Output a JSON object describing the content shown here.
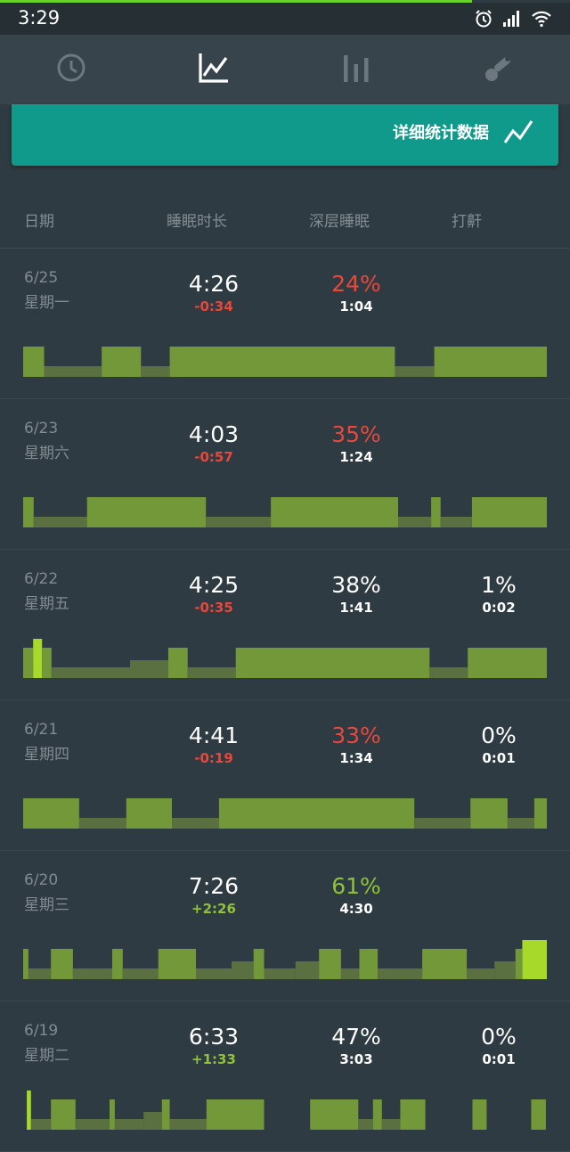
{
  "status_bar": {
    "time": "3:29",
    "icons": [
      "alarm-icon",
      "signal-icon",
      "wifi-icon"
    ]
  },
  "tabs": [
    {
      "name": "clock-tab",
      "icon": "clock-icon",
      "active": false
    },
    {
      "name": "graph-tab",
      "icon": "line-graph-icon",
      "active": true
    },
    {
      "name": "bars-tab",
      "icon": "bar-chart-icon",
      "active": false
    },
    {
      "name": "tools-tab",
      "icon": "tools-icon",
      "active": false
    }
  ],
  "detail_card": {
    "label": "详细统计数据",
    "icon": "trend-icon"
  },
  "headers": {
    "date": "日期",
    "duration": "睡眠时长",
    "deep": "深层睡眠",
    "snore": "打鼾"
  },
  "colors": {
    "background": "#2f3b42",
    "accent": "#0f9a8c",
    "deficit": "#e9473c",
    "surplus": "#8fc23a",
    "light": "#73983a",
    "deep": "#5b7040",
    "highlight": "#a6d92a"
  },
  "days": [
    {
      "date": "6/25",
      "weekday": "星期一",
      "duration": "4:26",
      "duration_diff": "-0:34",
      "diff_color": "red",
      "deep_pct": "24%",
      "deep_pct_color": "red",
      "deep_time": "1:04",
      "snore_pct": "",
      "snore_time": "",
      "segments": [
        {
          "stage": "light",
          "start": 0,
          "end": 0.04
        },
        {
          "stage": "deep",
          "start": 0.04,
          "end": 0.15
        },
        {
          "stage": "light",
          "start": 0.15,
          "end": 0.225
        },
        {
          "stage": "deep",
          "start": 0.225,
          "end": 0.28
        },
        {
          "stage": "light",
          "start": 0.28,
          "end": 0.71
        },
        {
          "stage": "deep",
          "start": 0.71,
          "end": 0.785
        },
        {
          "stage": "light",
          "start": 0.785,
          "end": 1
        }
      ]
    },
    {
      "date": "6/23",
      "weekday": "星期六",
      "duration": "4:03",
      "duration_diff": "-0:57",
      "diff_color": "red",
      "deep_pct": "35%",
      "deep_pct_color": "red",
      "deep_time": "1:24",
      "snore_pct": "",
      "snore_time": "",
      "segments": [
        {
          "stage": "light",
          "start": 0,
          "end": 0.02
        },
        {
          "stage": "deep",
          "start": 0.02,
          "end": 0.122
        },
        {
          "stage": "light",
          "start": 0.122,
          "end": 0.349
        },
        {
          "stage": "deep",
          "start": 0.349,
          "end": 0.473
        },
        {
          "stage": "light",
          "start": 0.473,
          "end": 0.716
        },
        {
          "stage": "deep",
          "start": 0.716,
          "end": 0.779
        },
        {
          "stage": "light",
          "start": 0.779,
          "end": 0.797
        },
        {
          "stage": "deep",
          "start": 0.797,
          "end": 0.857
        },
        {
          "stage": "light",
          "start": 0.857,
          "end": 1
        }
      ]
    },
    {
      "date": "6/22",
      "weekday": "星期五",
      "duration": "4:25",
      "duration_diff": "-0:35",
      "diff_color": "red",
      "deep_pct": "38%",
      "deep_pct_color": "white",
      "deep_time": "1:41",
      "snore_pct": "1%",
      "snore_time": "0:02",
      "segments": [
        {
          "stage": "light",
          "start": 0,
          "end": 0.019
        },
        {
          "stage": "highlight",
          "start": 0.019,
          "end": 0.036
        },
        {
          "stage": "light",
          "start": 0.036,
          "end": 0.054
        },
        {
          "stage": "deep",
          "start": 0.054,
          "end": 0.204
        },
        {
          "stage": "deep2",
          "start": 0.204,
          "end": 0.277
        },
        {
          "stage": "light",
          "start": 0.277,
          "end": 0.314
        },
        {
          "stage": "deep",
          "start": 0.314,
          "end": 0.406
        },
        {
          "stage": "light",
          "start": 0.406,
          "end": 0.776
        },
        {
          "stage": "deep",
          "start": 0.776,
          "end": 0.849
        },
        {
          "stage": "light",
          "start": 0.849,
          "end": 1
        }
      ]
    },
    {
      "date": "6/21",
      "weekday": "星期四",
      "duration": "4:41",
      "duration_diff": "-0:19",
      "diff_color": "red",
      "deep_pct": "33%",
      "deep_pct_color": "red",
      "deep_time": "1:34",
      "snore_pct": "0%",
      "snore_time": "0:01",
      "segments": [
        {
          "stage": "light",
          "start": 0,
          "end": 0.107
        },
        {
          "stage": "deep",
          "start": 0.107,
          "end": 0.197
        },
        {
          "stage": "light",
          "start": 0.197,
          "end": 0.284
        },
        {
          "stage": "deep",
          "start": 0.284,
          "end": 0.374
        },
        {
          "stage": "light",
          "start": 0.374,
          "end": 0.747
        },
        {
          "stage": "deep",
          "start": 0.747,
          "end": 0.854
        },
        {
          "stage": "light",
          "start": 0.854,
          "end": 0.925
        },
        {
          "stage": "deep",
          "start": 0.925,
          "end": 0.976
        },
        {
          "stage": "light",
          "start": 0.976,
          "end": 1
        }
      ]
    },
    {
      "date": "6/20",
      "weekday": "星期三",
      "duration": "7:26",
      "duration_diff": "+2:26",
      "diff_color": "green",
      "deep_pct": "61%",
      "deep_pct_color": "green",
      "deep_time": "4:30",
      "snore_pct": "",
      "snore_time": "",
      "segments": [
        {
          "stage": "light",
          "start": 0,
          "end": 0.01
        },
        {
          "stage": "deep",
          "start": 0.01,
          "end": 0.053
        },
        {
          "stage": "light",
          "start": 0.053,
          "end": 0.095
        },
        {
          "stage": "deep",
          "start": 0.095,
          "end": 0.17
        },
        {
          "stage": "light",
          "start": 0.17,
          "end": 0.19
        },
        {
          "stage": "deep",
          "start": 0.19,
          "end": 0.258
        },
        {
          "stage": "light",
          "start": 0.258,
          "end": 0.33
        },
        {
          "stage": "deep",
          "start": 0.33,
          "end": 0.398
        },
        {
          "stage": "deep2",
          "start": 0.398,
          "end": 0.44
        },
        {
          "stage": "light",
          "start": 0.44,
          "end": 0.46
        },
        {
          "stage": "deep",
          "start": 0.46,
          "end": 0.52
        },
        {
          "stage": "deep2",
          "start": 0.52,
          "end": 0.565
        },
        {
          "stage": "light",
          "start": 0.565,
          "end": 0.607
        },
        {
          "stage": "deep",
          "start": 0.607,
          "end": 0.642
        },
        {
          "stage": "light",
          "start": 0.642,
          "end": 0.677
        },
        {
          "stage": "deep",
          "start": 0.677,
          "end": 0.762
        },
        {
          "stage": "light",
          "start": 0.762,
          "end": 0.847
        },
        {
          "stage": "deep",
          "start": 0.847,
          "end": 0.9
        },
        {
          "stage": "deep2",
          "start": 0.9,
          "end": 0.94
        },
        {
          "stage": "light",
          "start": 0.94,
          "end": 0.953
        },
        {
          "stage": "highlight",
          "start": 0.953,
          "end": 1
        }
      ]
    },
    {
      "date": "6/19",
      "weekday": "星期二",
      "duration": "6:33",
      "duration_diff": "+1:33",
      "diff_color": "green",
      "deep_pct": "47%",
      "deep_pct_color": "white",
      "deep_time": "3:03",
      "snore_pct": "0%",
      "snore_time": "0:01",
      "segments": [
        {
          "stage": "highlight",
          "start": 0.007,
          "end": 0.015
        },
        {
          "stage": "deep",
          "start": 0.015,
          "end": 0.053
        },
        {
          "stage": "light",
          "start": 0.053,
          "end": 0.1
        },
        {
          "stage": "deep",
          "start": 0.1,
          "end": 0.165
        },
        {
          "stage": "light",
          "start": 0.165,
          "end": 0.175
        },
        {
          "stage": "deep",
          "start": 0.175,
          "end": 0.23
        },
        {
          "stage": "deep2",
          "start": 0.23,
          "end": 0.265
        },
        {
          "stage": "light",
          "start": 0.265,
          "end": 0.28
        },
        {
          "stage": "deep",
          "start": 0.28,
          "end": 0.35
        },
        {
          "stage": "light",
          "start": 0.35,
          "end": 0.46
        },
        {
          "stage": "light",
          "start": 0.548,
          "end": 0.64
        },
        {
          "stage": "deep",
          "start": 0.64,
          "end": 0.668
        },
        {
          "stage": "light",
          "start": 0.668,
          "end": 0.685
        },
        {
          "stage": "deep",
          "start": 0.685,
          "end": 0.72
        },
        {
          "stage": "light",
          "start": 0.72,
          "end": 0.768
        },
        {
          "stage": "light",
          "start": 0.858,
          "end": 0.885
        },
        {
          "stage": "light",
          "start": 0.97,
          "end": 0.998
        }
      ]
    }
  ]
}
